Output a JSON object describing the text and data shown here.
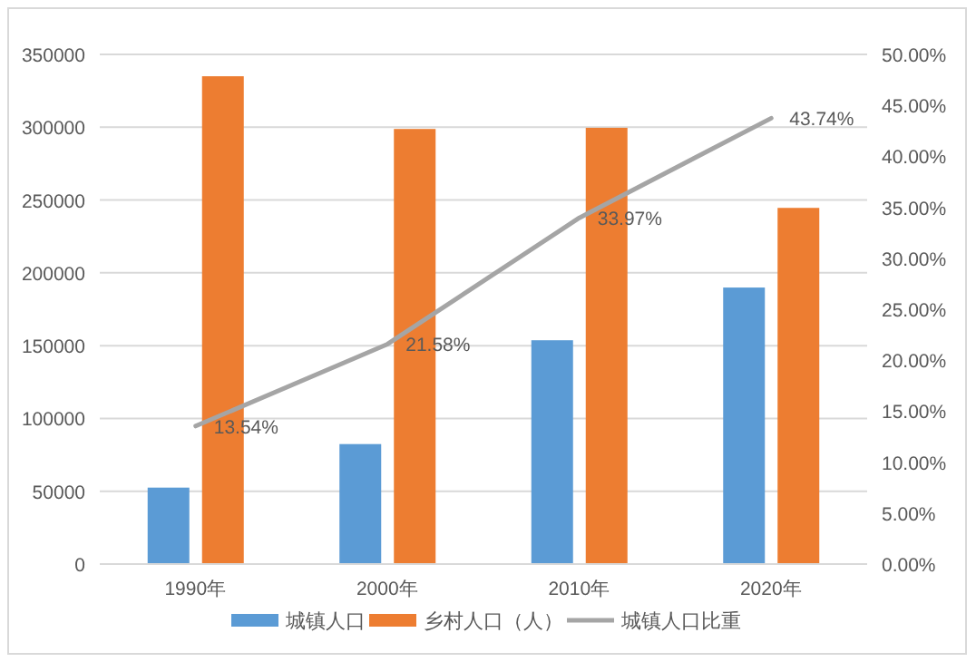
{
  "chart_data": {
    "type": "bar",
    "categories": [
      "1990年",
      "2000年",
      "2010年",
      "2020年"
    ],
    "ylim": [
      0,
      350000
    ],
    "yticks": [
      0,
      50000,
      100000,
      150000,
      200000,
      250000,
      300000,
      350000
    ],
    "y2lim": [
      0,
      50
    ],
    "y2ticks": [
      {
        "value": 0,
        "label": "0.00%"
      },
      {
        "value": 5,
        "label": "5.00%"
      },
      {
        "value": 10,
        "label": "10.00%"
      },
      {
        "value": 15,
        "label": "15.00%"
      },
      {
        "value": 20,
        "label": "20.00%"
      },
      {
        "value": 25,
        "label": "25.00%"
      },
      {
        "value": 30,
        "label": "30.00%"
      },
      {
        "value": 35,
        "label": "35.00%"
      },
      {
        "value": 40,
        "label": "40.00%"
      },
      {
        "value": 45,
        "label": "45.00%"
      },
      {
        "value": 50,
        "label": "50.00%"
      }
    ],
    "series": [
      {
        "name": "城镇人口",
        "color": "#5b9bd5",
        "values": [
          52500,
          82400,
          153700,
          189900
        ]
      },
      {
        "name": "乡村人口（人）",
        "color": "#ed7d31",
        "values": [
          335000,
          298800,
          299600,
          244600
        ]
      },
      {
        "name": "城镇人口比重",
        "type": "line",
        "axis": "y2",
        "color": "#a5a5a5",
        "values": [
          13.54,
          21.58,
          33.97,
          43.74
        ],
        "value_labels": [
          "13.54%",
          "21.58%",
          "33.97%",
          "43.74%"
        ]
      }
    ],
    "grid": "y",
    "legend": "bottom"
  }
}
